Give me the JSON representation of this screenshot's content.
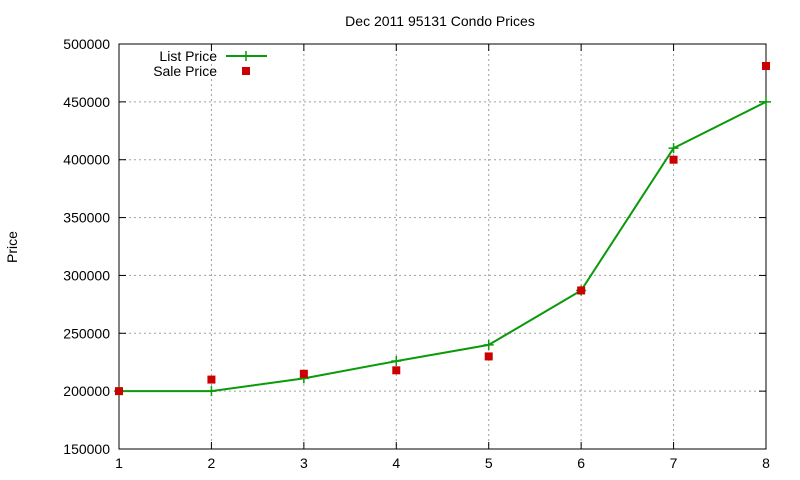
{
  "chart_data": {
    "type": "line",
    "title": "Dec 2011 95131 Condo Prices",
    "xlabel": "",
    "ylabel": "Price",
    "x": [
      1,
      2,
      3,
      4,
      5,
      6,
      7,
      8
    ],
    "xlim": [
      1,
      8
    ],
    "ylim": [
      150000,
      500000
    ],
    "xticks": [
      "1",
      "2",
      "3",
      "4",
      "5",
      "6",
      "7",
      "8"
    ],
    "yticks": [
      "150000",
      "200000",
      "250000",
      "300000",
      "350000",
      "400000",
      "450000",
      "500000"
    ],
    "grid": true,
    "legend_position": "top-left",
    "series": [
      {
        "name": "List Price",
        "style": "line+cross",
        "color": "#0a9a0a",
        "values": [
          200000,
          200000,
          211000,
          226000,
          240000,
          287000,
          410000,
          450000
        ]
      },
      {
        "name": "Sale Price",
        "style": "square-points",
        "color": "#cc0000",
        "values": [
          200000,
          210000,
          215000,
          218000,
          230000,
          287000,
          400000,
          481000
        ]
      }
    ]
  }
}
